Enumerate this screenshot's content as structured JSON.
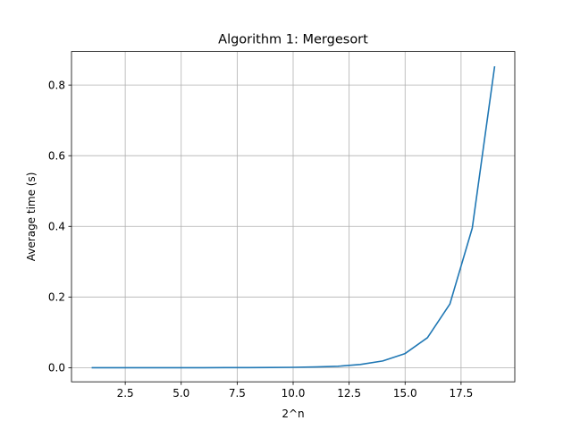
{
  "chart_data": {
    "type": "line",
    "title": "Algorithm 1: Mergesort",
    "xlabel": "2^n",
    "ylabel": "Average time (s)",
    "xlim": [
      0.1,
      19.9
    ],
    "ylim": [
      -0.04,
      0.895
    ],
    "xticks": [
      2.5,
      5.0,
      7.5,
      10.0,
      12.5,
      15.0,
      17.5
    ],
    "xtick_labels": [
      "2.5",
      "5.0",
      "7.5",
      "10.0",
      "12.5",
      "15.0",
      "17.5"
    ],
    "yticks": [
      0.0,
      0.2,
      0.4,
      0.6,
      0.8
    ],
    "ytick_labels": [
      "0.0",
      "0.2",
      "0.4",
      "0.6",
      "0.8"
    ],
    "grid": true,
    "series": [
      {
        "color": "#1f77b4",
        "x": [
          1,
          2,
          3,
          4,
          5,
          6,
          7,
          8,
          9,
          10,
          11,
          12,
          13,
          14,
          15,
          16,
          17,
          18,
          19
        ],
        "y": [
          0.0,
          0.0,
          0.0,
          0.0,
          0.0,
          0.0,
          0.0001,
          0.0002,
          0.0005,
          0.001,
          0.002,
          0.004,
          0.009,
          0.019,
          0.04,
          0.085,
          0.18,
          0.395,
          0.853
        ]
      }
    ]
  }
}
